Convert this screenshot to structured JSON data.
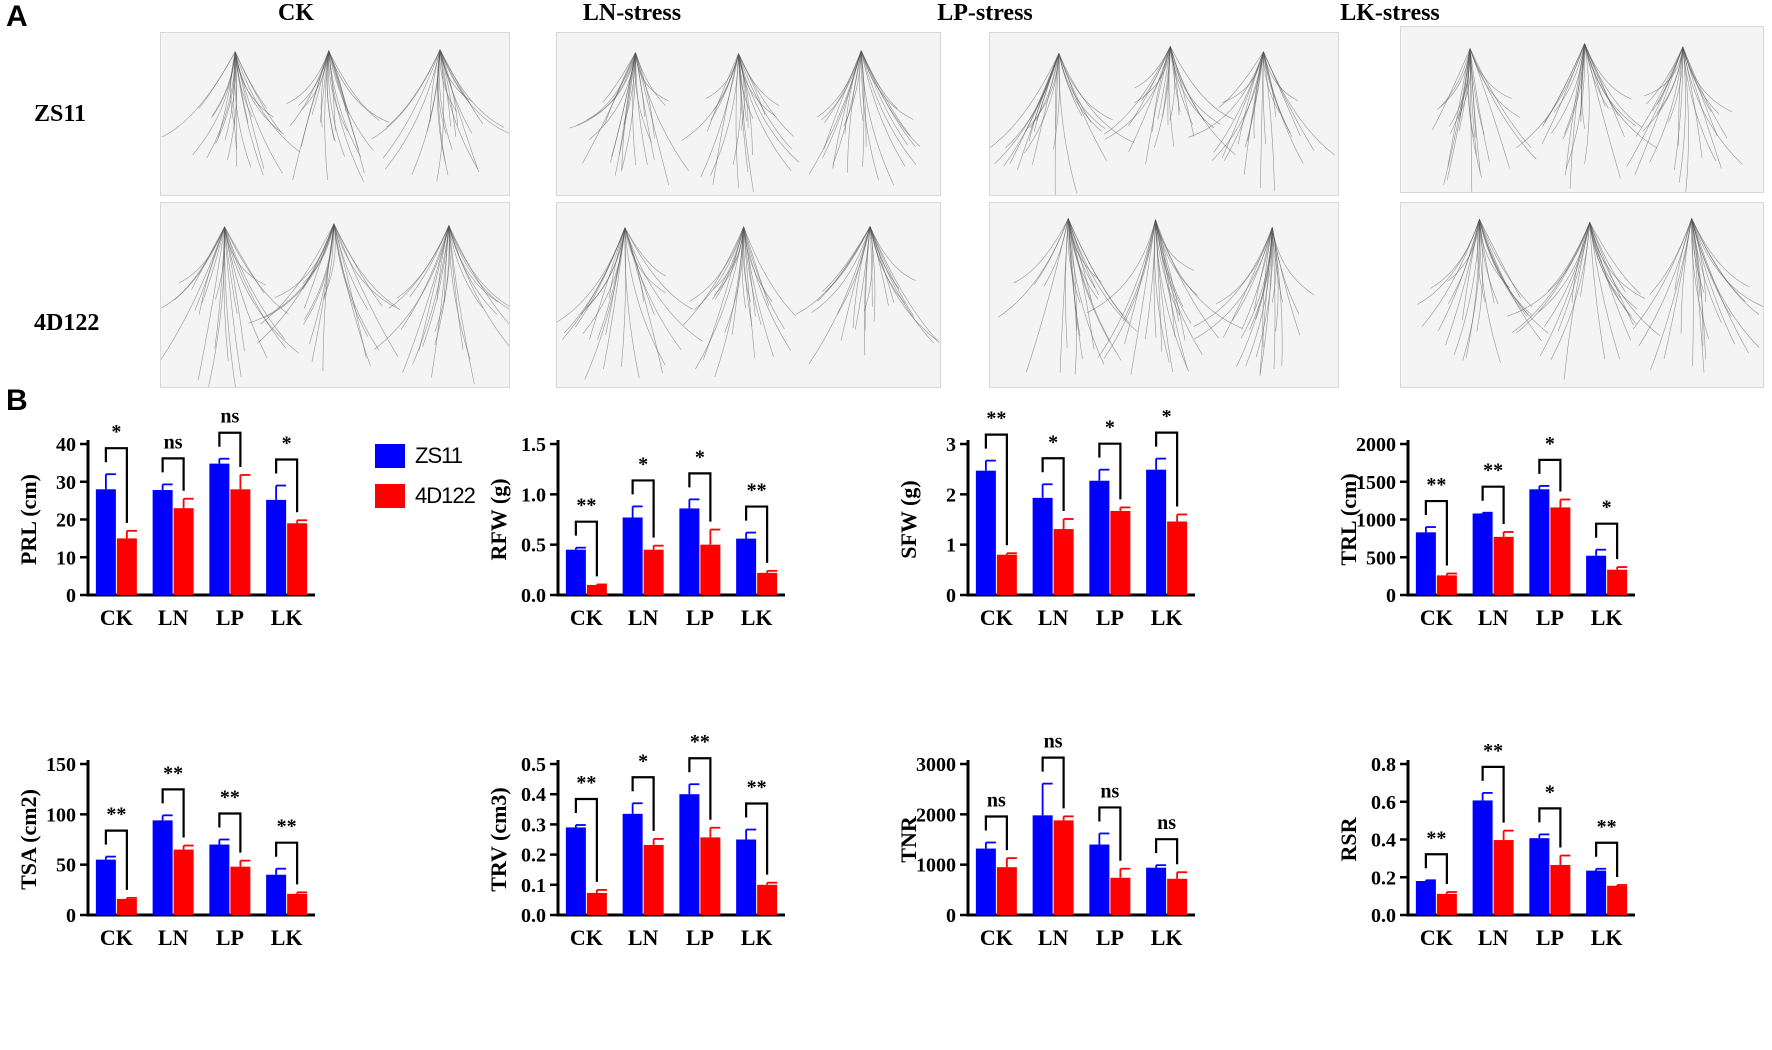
{
  "panels": {
    "a": "A",
    "b": "B"
  },
  "photos": {
    "columns": [
      "CK",
      "LN-stress",
      "LP-stress",
      "LK-stress"
    ],
    "rows": [
      "ZS11",
      "4D122"
    ]
  },
  "legend": [
    {
      "name": "ZS11",
      "color": "#0000ff"
    },
    {
      "name": "4D122",
      "color": "#ff0000"
    }
  ],
  "chart_data": [
    {
      "type": "bar",
      "title": "",
      "xlabel": "",
      "ylabel": "PRL (cm)",
      "categories": [
        "CK",
        "LN",
        "LP",
        "LK"
      ],
      "ylim": [
        0,
        40
      ],
      "yticks": [
        0,
        10,
        20,
        30,
        40
      ],
      "series": [
        {
          "name": "ZS11",
          "values": [
            28,
            27.8,
            34.8,
            25.2
          ],
          "errors": [
            4,
            1.5,
            1.3,
            3.8
          ]
        },
        {
          "name": "4D122",
          "values": [
            15,
            23,
            28,
            19
          ],
          "errors": [
            2,
            2.5,
            3.8,
            0.8
          ]
        }
      ],
      "significance": [
        "*",
        "ns",
        "ns",
        "*"
      ]
    },
    {
      "type": "bar",
      "title": "",
      "xlabel": "",
      "ylabel": "RFW (g)",
      "categories": [
        "CK",
        "LN",
        "LP",
        "LK"
      ],
      "ylim": [
        0,
        1.5
      ],
      "yticks": [
        0.0,
        0.5,
        1.0,
        1.5
      ],
      "series": [
        {
          "name": "ZS11",
          "values": [
            0.45,
            0.77,
            0.86,
            0.56
          ],
          "errors": [
            0.02,
            0.11,
            0.09,
            0.06
          ]
        },
        {
          "name": "4D122",
          "values": [
            0.1,
            0.45,
            0.5,
            0.22
          ],
          "errors": [
            0.005,
            0.04,
            0.15,
            0.02
          ]
        }
      ],
      "significance": [
        "**",
        "*",
        "*",
        "**"
      ]
    },
    {
      "type": "bar",
      "title": "",
      "xlabel": "",
      "ylabel": "SFW (g)",
      "categories": [
        "CK",
        "LN",
        "LP",
        "LK"
      ],
      "ylim": [
        0,
        3
      ],
      "yticks": [
        0,
        1,
        2,
        3
      ],
      "series": [
        {
          "name": "ZS11",
          "values": [
            2.47,
            1.93,
            2.27,
            2.49
          ],
          "errors": [
            0.2,
            0.27,
            0.22,
            0.22
          ]
        },
        {
          "name": "4D122",
          "values": [
            0.8,
            1.31,
            1.67,
            1.46
          ],
          "errors": [
            0.03,
            0.2,
            0.07,
            0.14
          ]
        }
      ],
      "significance": [
        "**",
        "*",
        "*",
        "*"
      ]
    },
    {
      "type": "bar",
      "title": "",
      "xlabel": "",
      "ylabel": "TRL (cm)",
      "categories": [
        "CK",
        "LN",
        "LP",
        "LK"
      ],
      "ylim": [
        0,
        2000
      ],
      "yticks": [
        0,
        500,
        1000,
        1500,
        2000
      ],
      "series": [
        {
          "name": "ZS11",
          "values": [
            830,
            1080,
            1400,
            520
          ],
          "errors": [
            70,
            10,
            45,
            80
          ]
        },
        {
          "name": "4D122",
          "values": [
            260,
            770,
            1160,
            335
          ],
          "errors": [
            25,
            65,
            105,
            35
          ]
        }
      ],
      "significance": [
        "**",
        "**",
        "*",
        "*"
      ]
    },
    {
      "type": "bar",
      "title": "",
      "xlabel": "",
      "ylabel": "TSA (cm2)",
      "categories": [
        "CK",
        "LN",
        "LP",
        "LK"
      ],
      "ylim": [
        0,
        150
      ],
      "yticks": [
        0,
        50,
        100,
        150
      ],
      "series": [
        {
          "name": "ZS11",
          "values": [
            55,
            94,
            70,
            40
          ],
          "errors": [
            3,
            5,
            5,
            6
          ]
        },
        {
          "name": "4D122",
          "values": [
            16,
            65,
            48,
            21
          ],
          "errors": [
            1,
            4,
            6,
            1.5
          ]
        }
      ],
      "significance": [
        "**",
        "**",
        "**",
        "**"
      ]
    },
    {
      "type": "bar",
      "title": "",
      "xlabel": "",
      "ylabel": "TRV (cm3)",
      "categories": [
        "CK",
        "LN",
        "LP",
        "LK"
      ],
      "ylim": [
        0,
        0.5
      ],
      "yticks": [
        0.0,
        0.1,
        0.2,
        0.3,
        0.4,
        0.5
      ],
      "series": [
        {
          "name": "ZS11",
          "values": [
            0.29,
            0.335,
            0.4,
            0.25
          ],
          "errors": [
            0.008,
            0.035,
            0.033,
            0.033
          ]
        },
        {
          "name": "4D122",
          "values": [
            0.073,
            0.232,
            0.257,
            0.1
          ],
          "errors": [
            0.01,
            0.02,
            0.032,
            0.007
          ]
        }
      ],
      "significance": [
        "**",
        "*",
        "**",
        "**"
      ]
    },
    {
      "type": "bar",
      "title": "",
      "xlabel": "",
      "ylabel": "TNR",
      "categories": [
        "CK",
        "LN",
        "LP",
        "LK"
      ],
      "ylim": [
        0,
        3000
      ],
      "yticks": [
        0,
        1000,
        2000,
        3000
      ],
      "series": [
        {
          "name": "ZS11",
          "values": [
            1320,
            1980,
            1400,
            940
          ],
          "errors": [
            120,
            630,
            220,
            50
          ]
        },
        {
          "name": "4D122",
          "values": [
            950,
            1880,
            740,
            720
          ],
          "errors": [
            180,
            80,
            180,
            130
          ]
        }
      ],
      "significance": [
        "ns",
        "ns",
        "ns",
        "ns"
      ]
    },
    {
      "type": "bar",
      "title": "",
      "xlabel": "",
      "ylabel": "RSR",
      "categories": [
        "CK",
        "LN",
        "LP",
        "LK"
      ],
      "ylim": [
        0,
        0.8
      ],
      "yticks": [
        0.0,
        0.2,
        0.4,
        0.6,
        0.8
      ],
      "series": [
        {
          "name": "ZS11",
          "values": [
            0.18,
            0.607,
            0.407,
            0.235
          ],
          "errors": [
            0.004,
            0.04,
            0.02,
            0.01
          ]
        },
        {
          "name": "4D122",
          "values": [
            0.112,
            0.397,
            0.265,
            0.155
          ],
          "errors": [
            0.01,
            0.05,
            0.05,
            0.004
          ]
        }
      ],
      "significance": [
        "**",
        "**",
        "*",
        "**"
      ]
    }
  ]
}
